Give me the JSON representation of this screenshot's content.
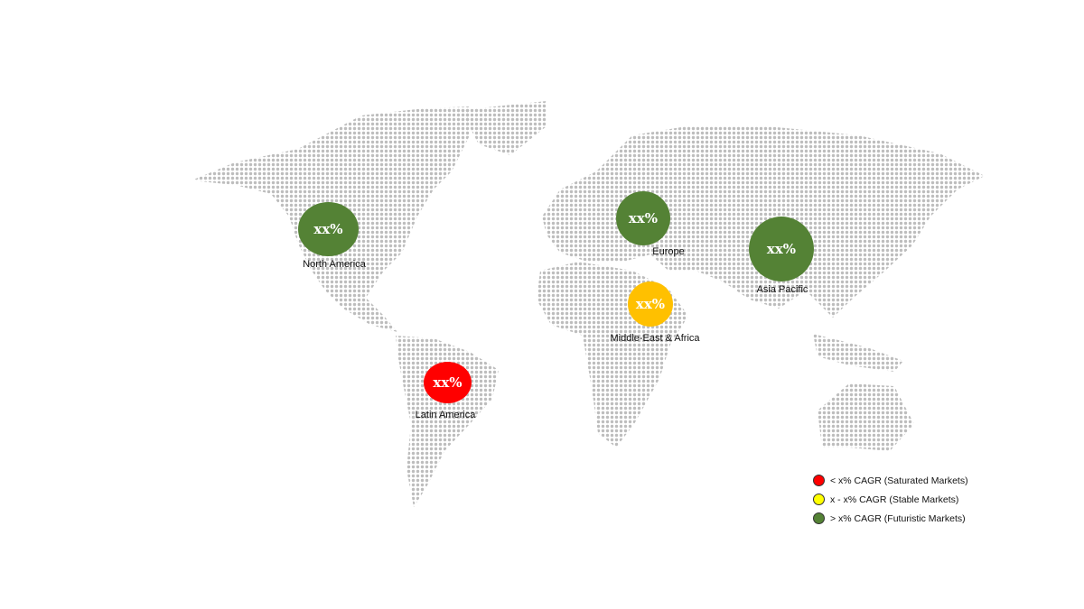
{
  "regions": [
    {
      "name": "North America",
      "value": "xx%",
      "color": "#548235"
    },
    {
      "name": "Europe",
      "value": "xx%",
      "color": "#548235"
    },
    {
      "name": "Asia Pacific",
      "value": "xx%",
      "color": "#548235"
    },
    {
      "name": "Middle-East & Africa",
      "value": "xx%",
      "color": "#FFC000"
    },
    {
      "name": "Latin America",
      "value": "xx%",
      "color": "#FF0000"
    }
  ],
  "legend": [
    {
      "label": "< x% CAGR (Saturated Markets)",
      "color": "#FF0000"
    },
    {
      "label": "x - x% CAGR (Stable Markets)",
      "color": "#FFFF00"
    },
    {
      "label": "> x% CAGR (Futuristic Markets)",
      "color": "#548235"
    }
  ],
  "map_dot_color": "#BDBDBD"
}
